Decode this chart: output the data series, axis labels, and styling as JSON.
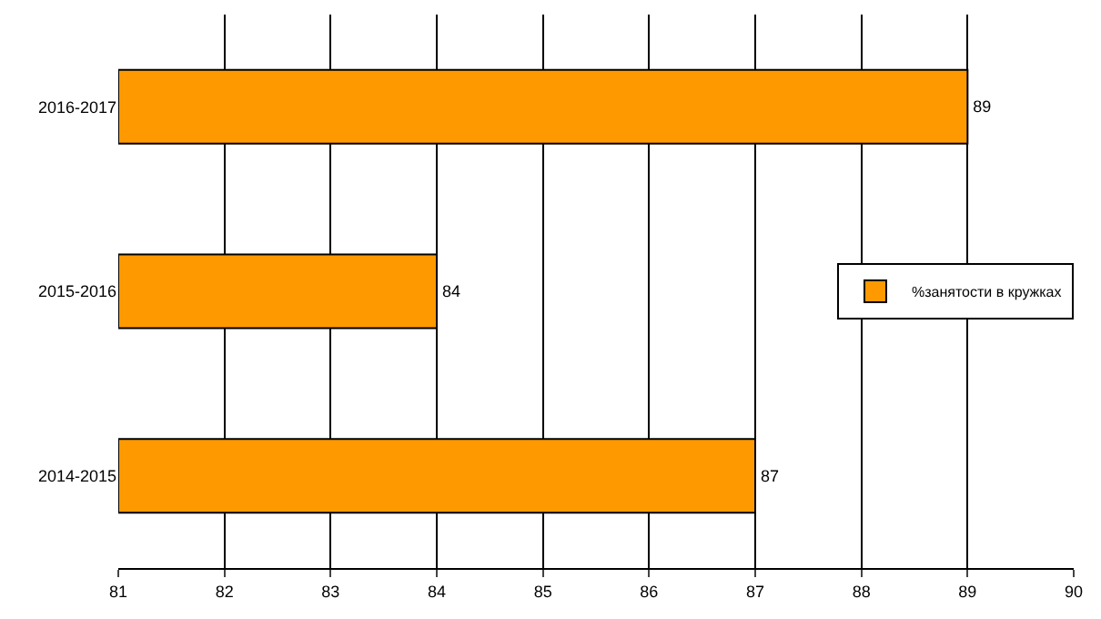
{
  "chart_data": {
    "type": "bar",
    "orientation": "horizontal",
    "categories": [
      "2016-2017",
      "2015-2016",
      "2014-2015"
    ],
    "series": [
      {
        "name": "%занятости в кружках",
        "color": "#ff9900",
        "values": [
          89,
          84,
          87
        ]
      }
    ],
    "xlim": [
      81,
      90
    ],
    "xticks": [
      81,
      82,
      83,
      84,
      85,
      86,
      87,
      88,
      89,
      90
    ],
    "grid": "x",
    "legend": "right",
    "data_labels": true
  }
}
